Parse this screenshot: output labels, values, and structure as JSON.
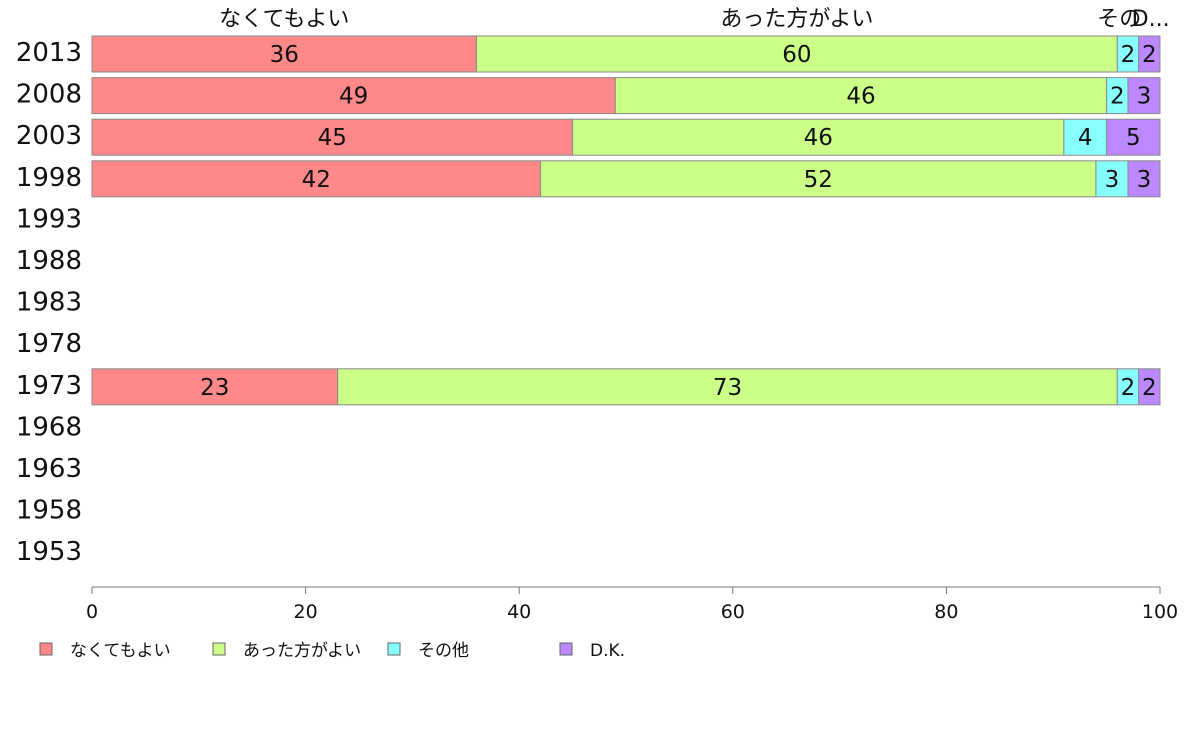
{
  "chart_data": {
    "type": "bar",
    "orientation": "horizontal",
    "stacked": true,
    "categories": [
      "2013",
      "2008",
      "2003",
      "1998",
      "1993",
      "1988",
      "1983",
      "1978",
      "1973",
      "1968",
      "1963",
      "1958",
      "1953"
    ],
    "series": [
      {
        "name": "なくてもよい",
        "color": "#ff8888",
        "values": [
          36,
          49,
          45,
          42,
          null,
          null,
          null,
          null,
          23,
          null,
          null,
          null,
          null
        ]
      },
      {
        "name": "あった方がよい",
        "color": "#ccff88",
        "values": [
          60,
          46,
          46,
          52,
          null,
          null,
          null,
          null,
          73,
          null,
          null,
          null,
          null
        ]
      },
      {
        "name": "その他",
        "color": "#88ffff",
        "values": [
          2,
          2,
          4,
          3,
          null,
          null,
          null,
          null,
          2,
          null,
          null,
          null,
          null
        ]
      },
      {
        "name": "D.K.",
        "color": "#bb88ff",
        "values": [
          2,
          3,
          5,
          3,
          null,
          null,
          null,
          null,
          2,
          null,
          null,
          null,
          null
        ]
      }
    ],
    "top_labels": [
      "なくてもよい",
      "あった方がよい",
      "その",
      "D..."
    ],
    "xlim": [
      0,
      100
    ],
    "xticks": [
      0,
      20,
      40,
      60,
      80,
      100
    ],
    "grid": false,
    "legend_position": "bottom"
  }
}
